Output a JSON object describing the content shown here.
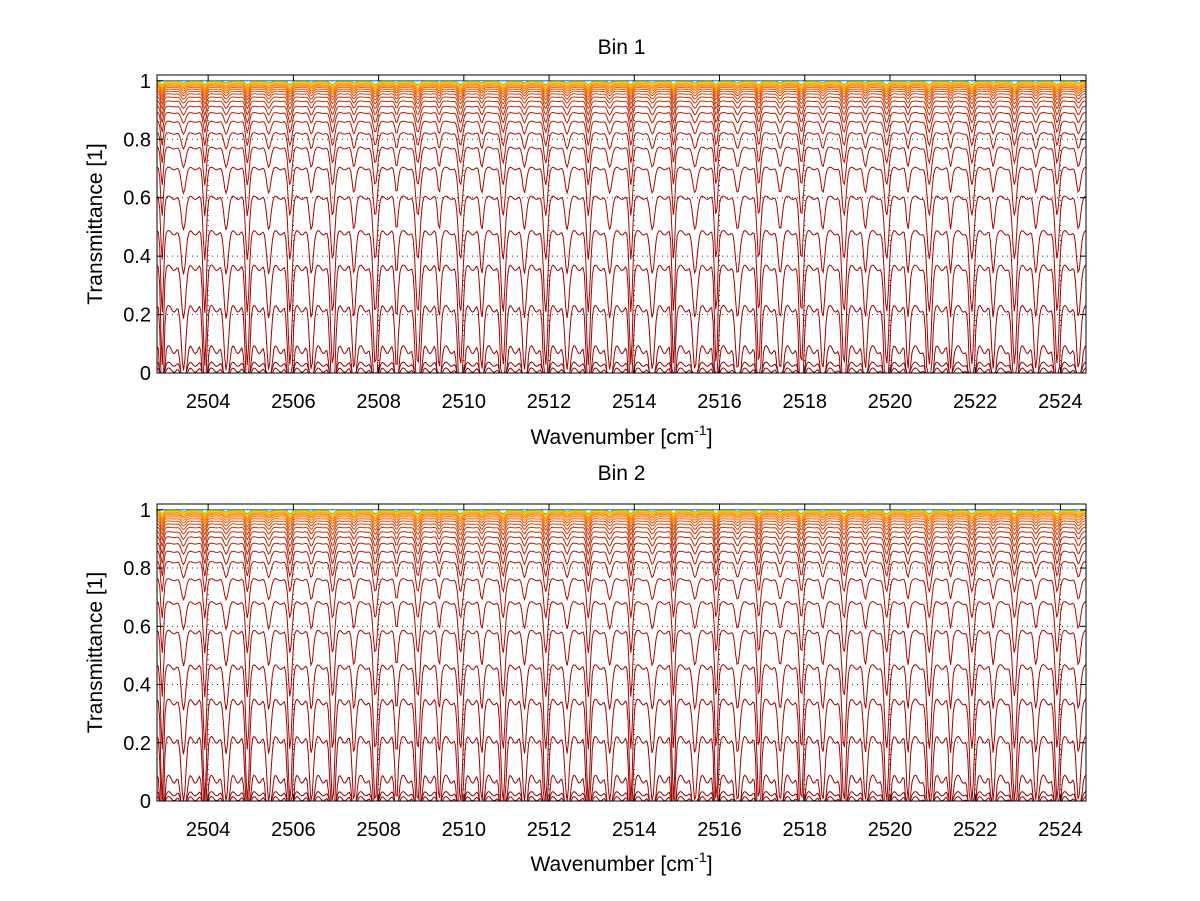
{
  "chart_data": [
    {
      "type": "line",
      "title": "Bin 1",
      "xlabel": "Wavenumber [cm",
      "xlabel_sup": "-1",
      "xlabel_end": "]",
      "ylabel": "Transmittance [1]",
      "xlim": [
        2502.8,
        2524.6
      ],
      "ylim": [
        0,
        1.02
      ],
      "xticks": [
        2504,
        2506,
        2508,
        2510,
        2512,
        2514,
        2516,
        2518,
        2520,
        2522,
        2524
      ],
      "yticks": [
        0,
        0.2,
        0.4,
        0.6,
        0.8,
        1
      ],
      "ytick_labels": [
        "0",
        "0.2",
        "0.4",
        "0.6",
        "0.8",
        "1"
      ],
      "grid": true,
      "series_baselines": [
        1.0,
        0.998,
        0.996,
        0.993,
        0.99,
        0.986,
        0.982,
        0.977,
        0.971,
        0.964,
        0.955,
        0.944,
        0.93,
        0.912,
        0.89,
        0.86,
        0.82,
        0.77,
        0.7,
        0.6,
        0.48,
        0.36,
        0.22,
        0.08,
        0.03,
        0.01
      ],
      "series_colors": [
        "#1f6fd1",
        "#22aa55",
        "#ffd400",
        "#ffc000",
        "#ffa000",
        "#ff8c00",
        "#ff7a00",
        "#f26a00",
        "#e85a00",
        "#df4b00",
        "#d63e00",
        "#cc3300",
        "#c42b00",
        "#bd2300",
        "#b81c00",
        "#b41500",
        "#b00f00",
        "#ad0a00",
        "#aa0600",
        "#a80300",
        "#a50200",
        "#a20100",
        "#9e0000",
        "#9a0000",
        "#950000",
        "#900000"
      ]
    },
    {
      "type": "line",
      "title": "Bin 2",
      "xlabel": "Wavenumber [cm",
      "xlabel_sup": "-1",
      "xlabel_end": "]",
      "ylabel": "Transmittance [1]",
      "xlim": [
        2502.8,
        2524.6
      ],
      "ylim": [
        0,
        1.02
      ],
      "xticks": [
        2504,
        2506,
        2508,
        2510,
        2512,
        2514,
        2516,
        2518,
        2520,
        2522,
        2524
      ],
      "yticks": [
        0,
        0.2,
        0.4,
        0.6,
        0.8,
        1
      ],
      "ytick_labels": [
        "0",
        "0.2",
        "0.4",
        "0.6",
        "0.8",
        "1"
      ],
      "grid": true,
      "series_baselines": [
        1.0,
        0.998,
        0.996,
        0.993,
        0.99,
        0.986,
        0.982,
        0.976,
        0.969,
        0.961,
        0.951,
        0.939,
        0.924,
        0.906,
        0.884,
        0.856,
        0.82,
        0.76,
        0.68,
        0.58,
        0.46,
        0.34,
        0.21,
        0.075,
        0.025,
        0.008
      ],
      "series_colors": [
        "#1f6fd1",
        "#22aa55",
        "#ffd400",
        "#ffc000",
        "#ffa000",
        "#ff8c00",
        "#ff7a00",
        "#f26a00",
        "#e85a00",
        "#df4b00",
        "#d63e00",
        "#cc3300",
        "#c42b00",
        "#bd2300",
        "#b81c00",
        "#b41500",
        "#b00f00",
        "#ad0a00",
        "#aa0600",
        "#a80300",
        "#a50200",
        "#a20100",
        "#9e0000",
        "#9a0000",
        "#950000",
        "#900000"
      ]
    }
  ]
}
